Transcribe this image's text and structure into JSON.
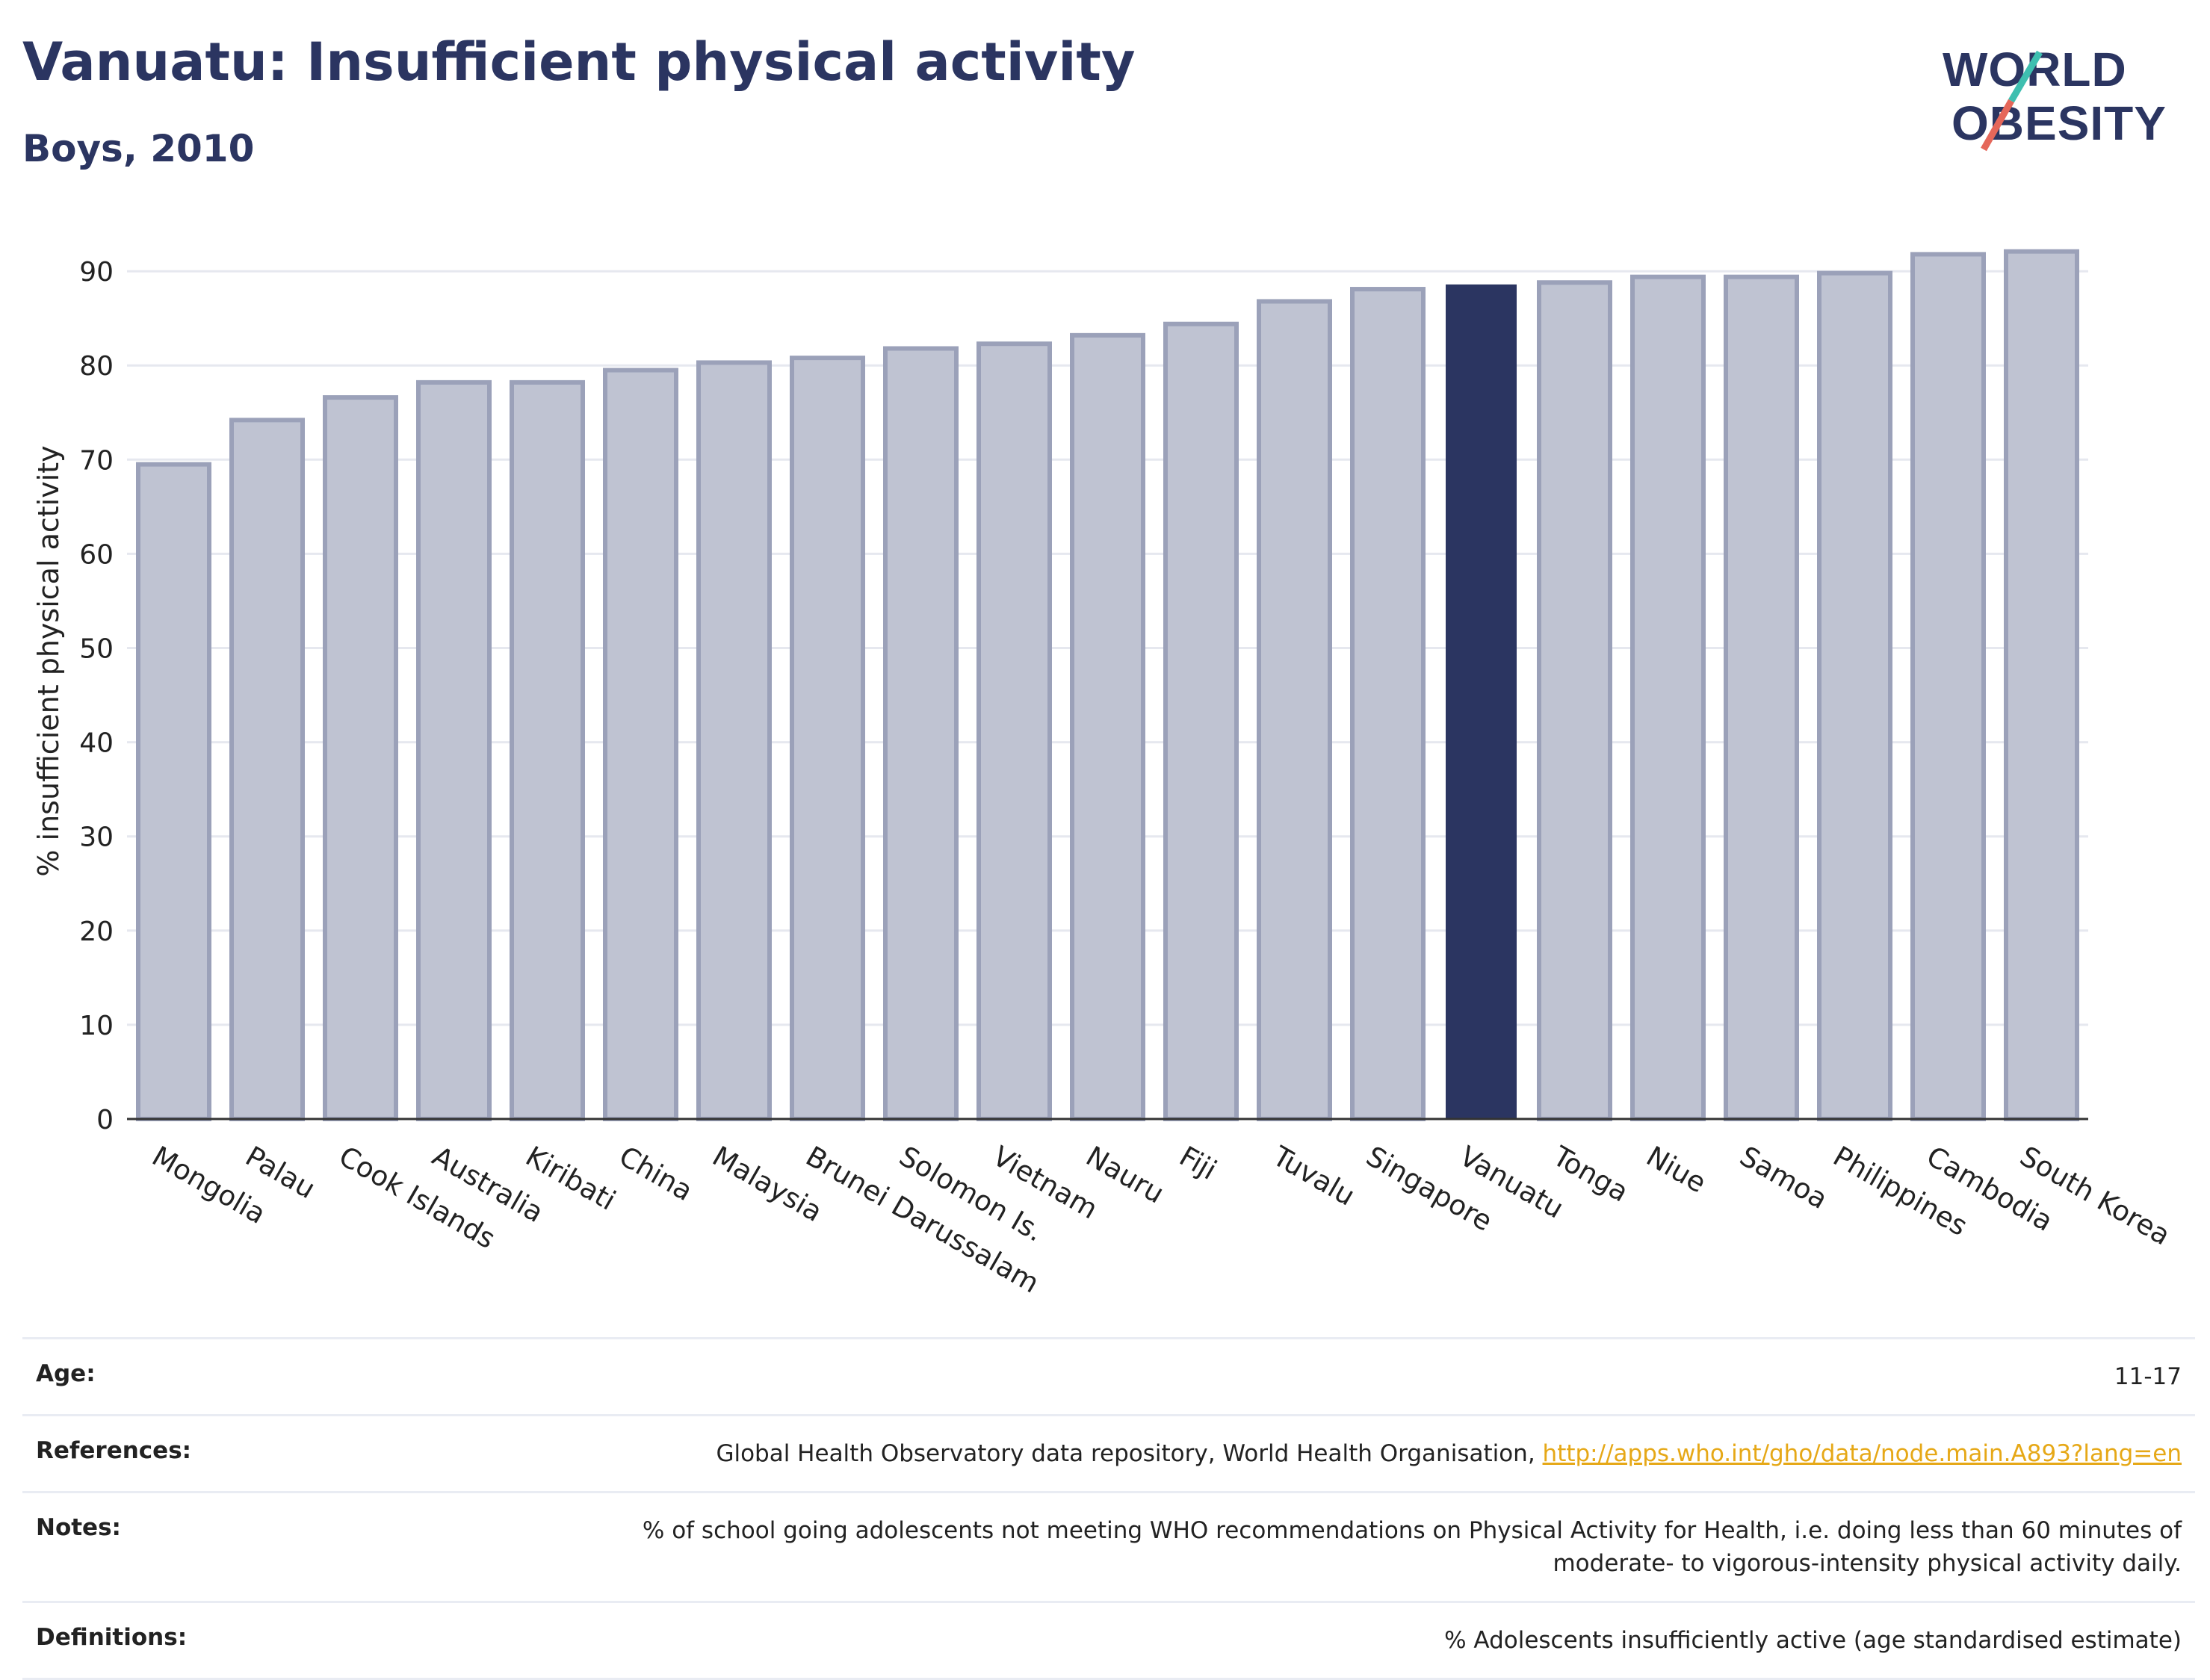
{
  "title": "Vanuatu: Insufficient physical activity",
  "subtitle": "Boys, 2010",
  "logo": {
    "line1": "WORLD",
    "line2": "OBESITY",
    "color": "#2b3561",
    "accent_red": "#e5675a",
    "accent_teal": "#3ebfb0"
  },
  "chart_data": {
    "type": "bar",
    "categories": [
      "Mongolia",
      "Palau",
      "Cook Islands",
      "Australia",
      "Kiribati",
      "China",
      "Malaysia",
      "Brunei Darussalam",
      "Solomon Is.",
      "Vietnam",
      "Nauru",
      "Fiji",
      "Tuvalu",
      "Singapore",
      "Vanuatu",
      "Tonga",
      "Niue",
      "Samoa",
      "Philippines",
      "Cambodia",
      "South Korea"
    ],
    "values": [
      69.5,
      74.2,
      76.6,
      78.2,
      78.2,
      79.5,
      80.3,
      80.8,
      81.8,
      82.3,
      83.2,
      84.4,
      86.8,
      88.1,
      88.6,
      88.8,
      89.4,
      89.4,
      89.8,
      91.8,
      92.1
    ],
    "highlight": "Vanuatu",
    "ylabel": "% insufficient physical activity",
    "xlabel": "",
    "ylim": [
      0,
      95
    ],
    "yticks": [
      0,
      10,
      20,
      30,
      40,
      50,
      60,
      70,
      80,
      90
    ],
    "grid": true,
    "colors": {
      "bar": "#bfc3d2",
      "bar_edge": "#9ba1b9",
      "highlight": "#2b3561",
      "grid": "#e6e8ef",
      "axis": "#333333"
    }
  },
  "meta": {
    "age_label": "Age:",
    "age_value": "11-17",
    "references_label": "References:",
    "references_text": "Global Health Observatory data repository, World Health Organisation, ",
    "references_link": "http://apps.who.int/gho/data/node.main.A893?lang=en",
    "notes_label": "Notes:",
    "notes_line1": "% of school going adolescents not meeting WHO recommendations on Physical Activity for Health, i.e. doing less than 60 minutes of",
    "notes_line2": "moderate- to vigorous-intensity physical activity daily.",
    "definitions_label": "Definitions:",
    "definitions_value": "% Adolescents insufficiently active (age standardised estimate)"
  }
}
